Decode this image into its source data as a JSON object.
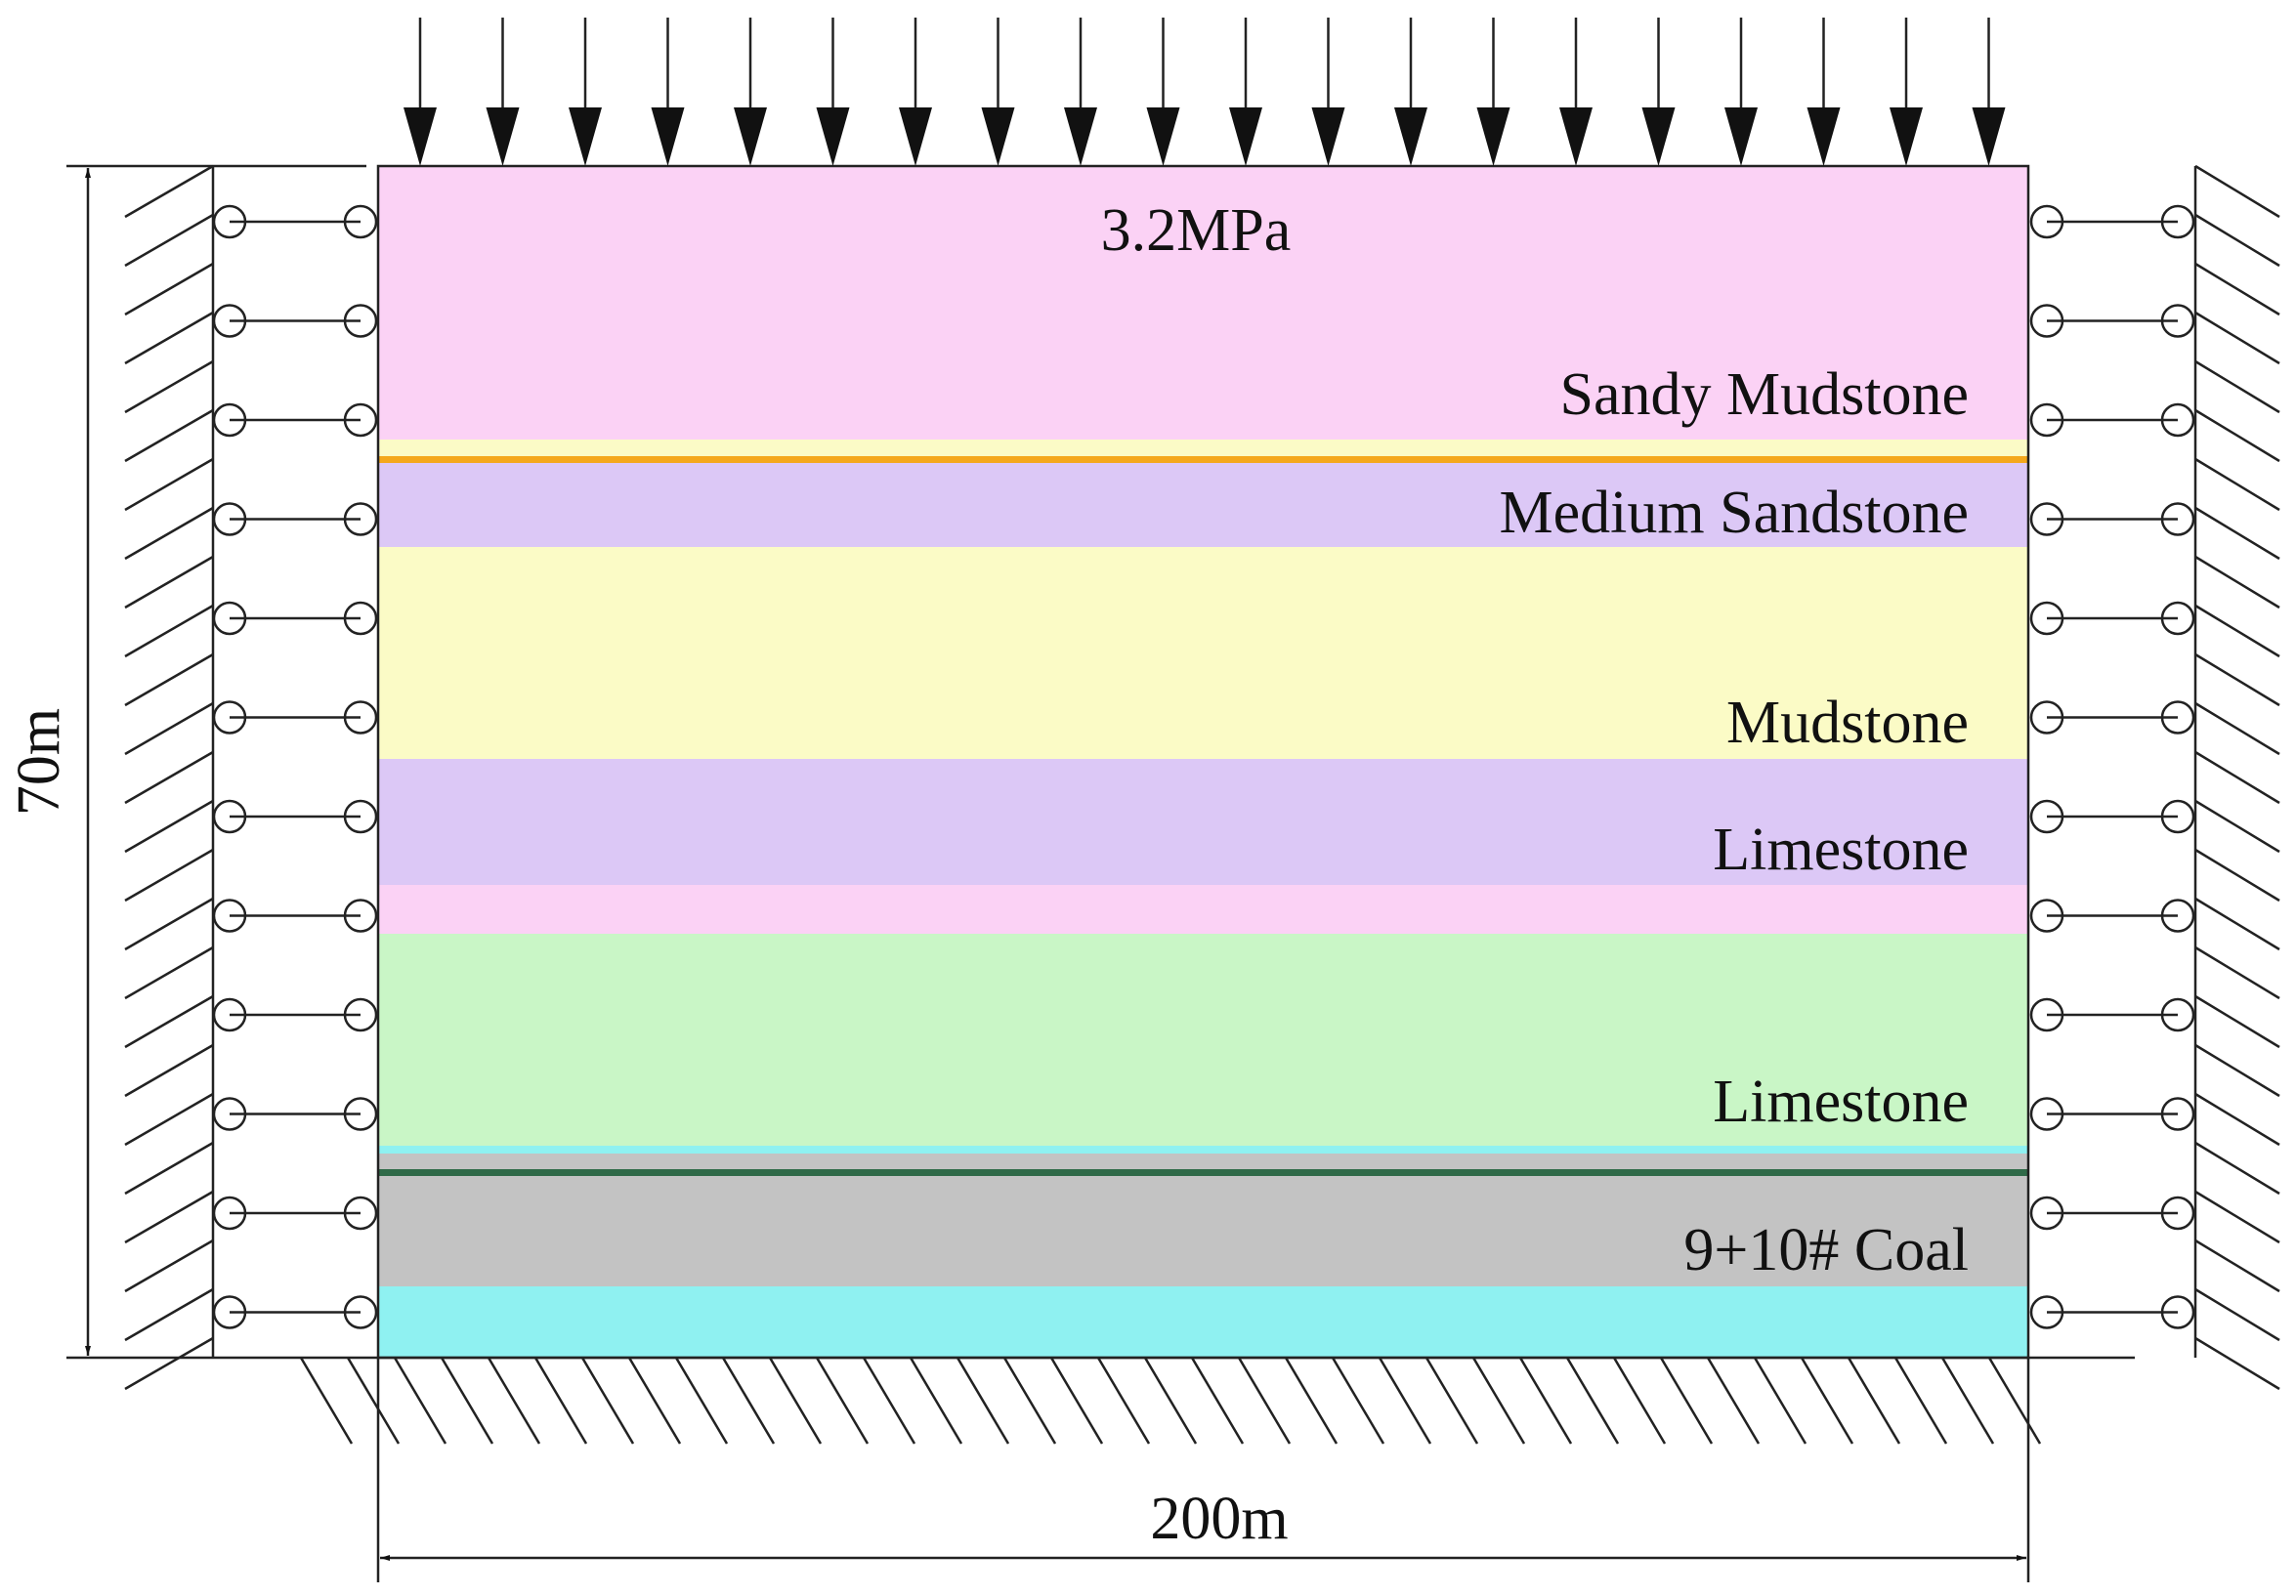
{
  "load": "3.2MPa",
  "layers": [
    {
      "label": "Sandy Mudstone"
    },
    {
      "label": "Medium Sandstone"
    },
    {
      "label": "Mudstone"
    },
    {
      "label": "Limestone"
    },
    {
      "label": "Limestone"
    },
    {
      "label": "9+10# Coal"
    }
  ],
  "dimensions": {
    "height": "70m",
    "width": "200m"
  }
}
